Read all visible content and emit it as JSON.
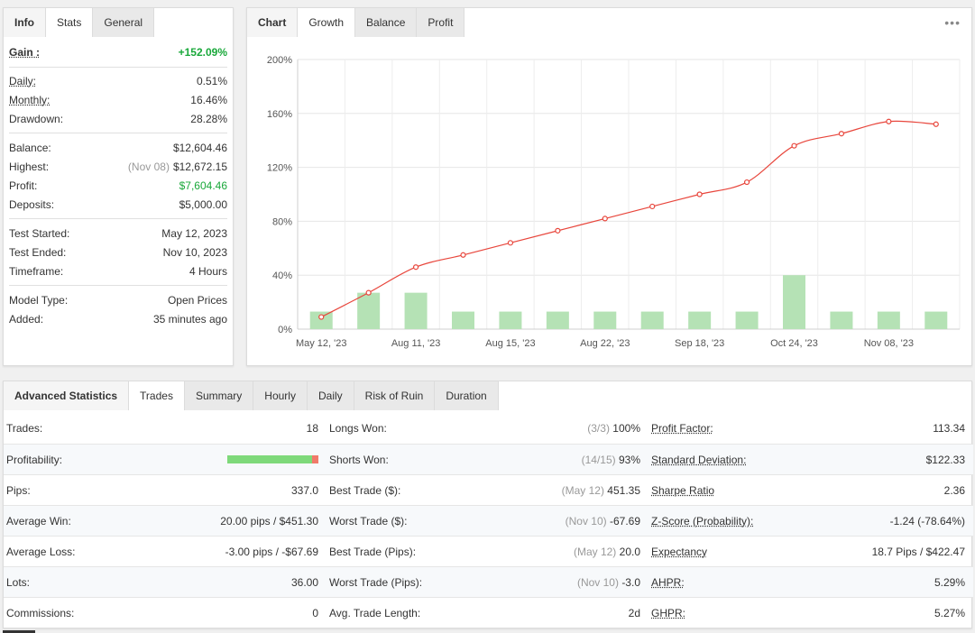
{
  "info_panel": {
    "tabs": [
      "Info",
      "Stats",
      "General"
    ],
    "gain": {
      "label": "Gain :",
      "value": "+152.09%"
    },
    "group1": [
      {
        "label": "Daily:",
        "value": "0.51%",
        "underline": true
      },
      {
        "label": "Monthly:",
        "value": "16.46%",
        "underline": true
      },
      {
        "label": "Drawdown:",
        "value": "28.28%",
        "underline": false
      }
    ],
    "group2": [
      {
        "label": "Balance:",
        "value": "$12,604.46",
        "sub": ""
      },
      {
        "label": "Highest:",
        "value": "$12,672.15",
        "sub": "(Nov 08)"
      },
      {
        "label": "Profit:",
        "value": "$7,604.46",
        "sub": "",
        "green": true
      },
      {
        "label": "Deposits:",
        "value": "$5,000.00",
        "sub": ""
      }
    ],
    "group3": [
      {
        "label": "Test Started:",
        "value": "May 12, 2023"
      },
      {
        "label": "Test Ended:",
        "value": "Nov 10, 2023"
      },
      {
        "label": "Timeframe:",
        "value": "4 Hours"
      }
    ],
    "group4": [
      {
        "label": "Model Type:",
        "value": "Open Prices"
      },
      {
        "label": "Added:",
        "value": "35 minutes ago"
      }
    ]
  },
  "chart_panel": {
    "tabs": [
      "Chart",
      "Growth",
      "Balance",
      "Profit"
    ],
    "more_icon": "more-horizontal-icon"
  },
  "chart_data": {
    "type": "line",
    "x_tick_labels": [
      "May 12, '23",
      "Aug 11, '23",
      "Aug 15, '23",
      "Aug 22, '23",
      "Sep 18, '23",
      "Oct 24, '23",
      "Nov 08, '23"
    ],
    "y_tick_labels": [
      "0%",
      "40%",
      "80%",
      "120%",
      "160%",
      "200%"
    ],
    "ylim": [
      0,
      200
    ],
    "grid": true,
    "series": [
      {
        "type": "line",
        "color": "#e8463c",
        "values": [
          9,
          27,
          46,
          55,
          64,
          73,
          82,
          91,
          100,
          109,
          136,
          145,
          154,
          152
        ]
      },
      {
        "type": "bar",
        "color": "#b5e2b5",
        "values": [
          13,
          27,
          27,
          13,
          13,
          13,
          13,
          13,
          13,
          13,
          40,
          13,
          13,
          13
        ]
      }
    ]
  },
  "advanced": {
    "tabs": [
      "Advanced Statistics",
      "Trades",
      "Summary",
      "Hourly",
      "Daily",
      "Risk of Ruin",
      "Duration"
    ],
    "rows": [
      {
        "c1": {
          "k": "Trades:",
          "v": "18"
        },
        "c2": {
          "k": "Longs Won:",
          "muted": "(3/3)",
          "v": "100%"
        },
        "c3": {
          "k": "Profit Factor:",
          "v": "113.34",
          "ul": true
        }
      },
      {
        "c1": {
          "k": "Profitability:",
          "bar": true
        },
        "c2": {
          "k": "Shorts Won:",
          "muted": "(14/15)",
          "v": "93%"
        },
        "c3": {
          "k": "Standard Deviation:",
          "v": "$122.33",
          "ul": true
        }
      },
      {
        "c1": {
          "k": "Pips:",
          "v": "337.0"
        },
        "c2": {
          "k": "Best Trade ($):",
          "muted": "(May 12)",
          "v": "451.35"
        },
        "c3": {
          "k": "Sharpe Ratio",
          "v": "2.36",
          "ul": true
        }
      },
      {
        "c1": {
          "k": "Average Win:",
          "v": "20.00 pips / $451.30"
        },
        "c2": {
          "k": "Worst Trade ($):",
          "muted": "(Nov 10)",
          "v": "-67.69"
        },
        "c3": {
          "k": "Z-Score (Probability):",
          "v": "-1.24 (-78.64%)",
          "ul": true
        }
      },
      {
        "c1": {
          "k": "Average Loss:",
          "v": "-3.00 pips / -$67.69"
        },
        "c2": {
          "k": "Best Trade (Pips):",
          "muted": "(May 12)",
          "v": "20.0"
        },
        "c3": {
          "k": "Expectancy",
          "v": "18.7 Pips / $422.47",
          "ul": true
        }
      },
      {
        "c1": {
          "k": "Lots:",
          "v": "36.00"
        },
        "c2": {
          "k": "Worst Trade (Pips):",
          "muted": "(Nov 10)",
          "v": "-3.0"
        },
        "c3": {
          "k": "AHPR:",
          "v": "5.29%",
          "ul": true
        }
      },
      {
        "c1": {
          "k": "Commissions:",
          "v": "0"
        },
        "c2": {
          "k": "Avg. Trade Length:",
          "muted": "",
          "v": "2d"
        },
        "c3": {
          "k": "GHPR:",
          "v": "5.27%",
          "ul": true
        }
      }
    ],
    "profitability": {
      "win_fraction": 0.93,
      "win_color": "#7ed97a",
      "loss_color": "#f07a6a"
    }
  }
}
